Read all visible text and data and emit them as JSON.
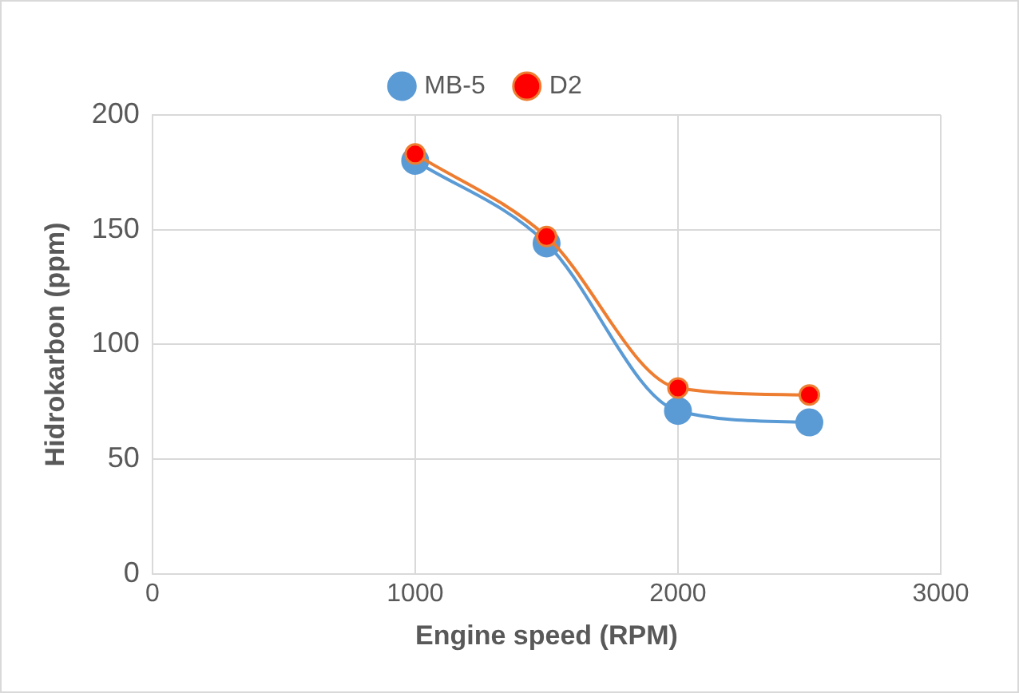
{
  "chart_data": {
    "type": "line",
    "xlabel": "Engine speed (RPM)",
    "ylabel": "Hidrokarbon (ppm)",
    "x": [
      1000,
      1500,
      2000,
      2500
    ],
    "series": [
      {
        "name": "MB-5",
        "color": "#5b9bd5",
        "values": [
          180,
          144,
          71,
          66
        ]
      },
      {
        "name": "D2",
        "color": "#ed7d31",
        "colors": [
          "#ff0000",
          "#ff0000",
          "#ff0000",
          "#ff0000"
        ],
        "values": [
          183,
          147,
          81,
          78
        ]
      }
    ],
    "xlim": [
      0,
      3000
    ],
    "xticks": [
      0,
      1000,
      2000,
      3000
    ],
    "ylim": [
      0,
      200
    ],
    "yticks": [
      0,
      50,
      100,
      150,
      200
    ],
    "grid": true,
    "legend": "top",
    "marker": "circle"
  }
}
